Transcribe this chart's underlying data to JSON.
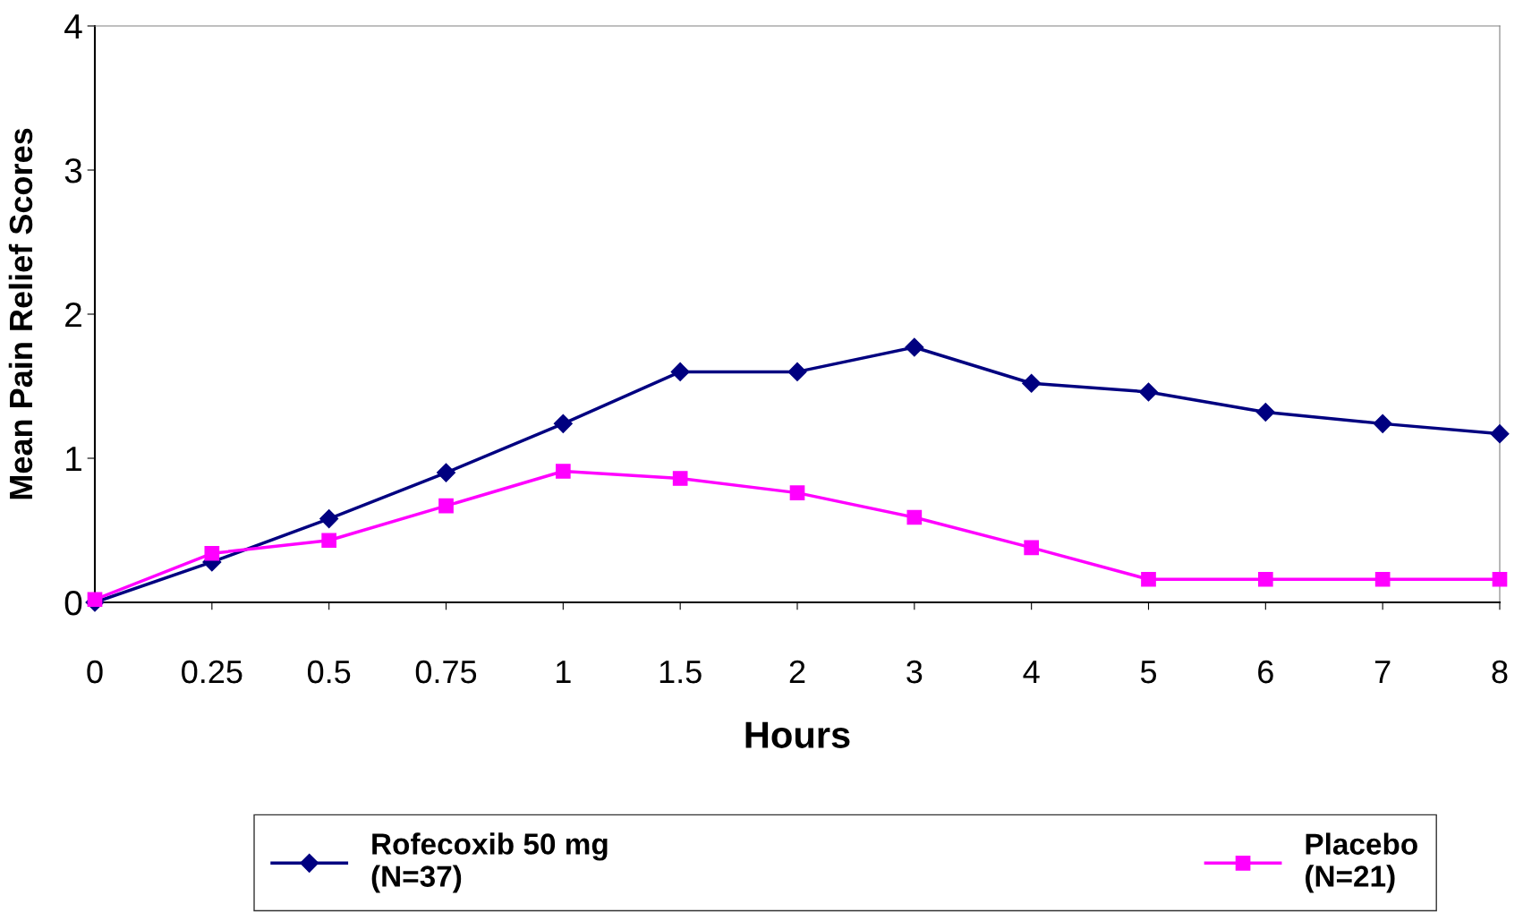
{
  "chart_data": {
    "type": "line",
    "xlabel": "Hours",
    "ylabel": "Mean Pain Relief Scores",
    "categories": [
      "0",
      "0.25",
      "0.5",
      "0.75",
      "1",
      "1.5",
      "2",
      "3",
      "4",
      "5",
      "6",
      "7",
      "8"
    ],
    "ylim": [
      0,
      4
    ],
    "yticks": [
      0,
      1,
      2,
      3,
      4
    ],
    "grid": false,
    "legend": "bottom",
    "line_style": "solid",
    "series": [
      {
        "name": "Rofecoxib 50 mg\n(N=37)",
        "color": "#000080",
        "marker": "diamond",
        "values": [
          0,
          0.28,
          0.58,
          0.9,
          1.24,
          1.6,
          1.6,
          1.77,
          1.52,
          1.46,
          1.32,
          1.24,
          1.17
        ]
      },
      {
        "name": "Placebo\n(N=21)",
        "color": "#ff00ff",
        "marker": "square",
        "values": [
          0.02,
          0.34,
          0.43,
          0.67,
          0.91,
          0.86,
          0.76,
          0.59,
          0.38,
          0.16,
          0.16,
          0.16,
          0.16
        ]
      }
    ]
  }
}
